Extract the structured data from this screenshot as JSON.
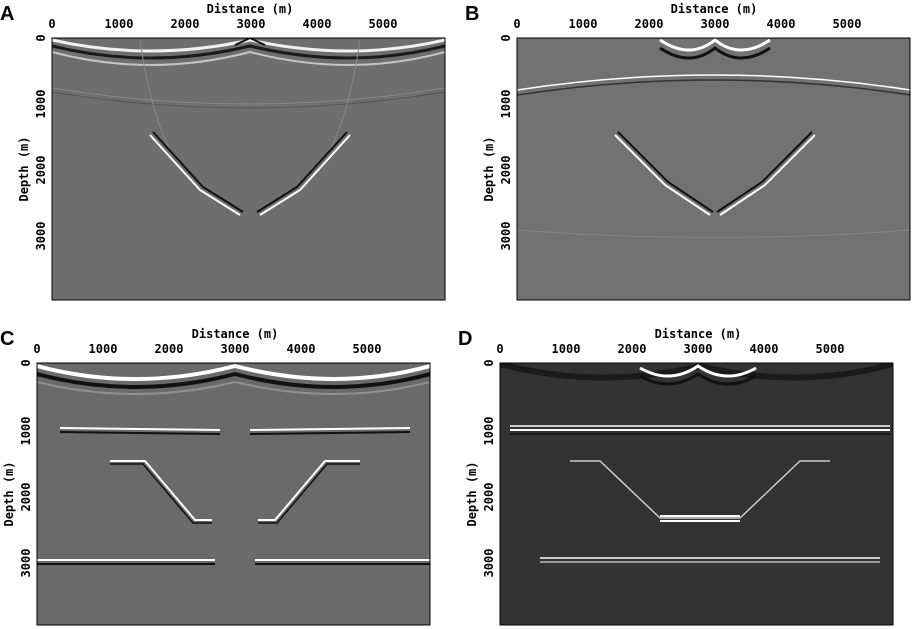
{
  "panels": [
    {
      "letter": "A",
      "xlabel": "Distance (m)",
      "ylabel": "Depth (m)",
      "x_ticks": [
        "0",
        "1000",
        "2000",
        "3000",
        "4000",
        "5000"
      ],
      "y_ticks": [
        "0",
        "1000",
        "2000",
        "3000"
      ],
      "background": "#6e6e6e"
    },
    {
      "letter": "B",
      "xlabel": "Distance (m)",
      "ylabel": "Depth (m)",
      "x_ticks": [
        "0",
        "1000",
        "2000",
        "3000",
        "4000",
        "5000"
      ],
      "y_ticks": [
        "0",
        "1000",
        "2000",
        "3000"
      ],
      "background": "#727272"
    },
    {
      "letter": "C",
      "xlabel": "Distance (m)",
      "ylabel": "Depth (m)",
      "x_ticks": [
        "0",
        "1000",
        "2000",
        "3000",
        "4000",
        "5000"
      ],
      "y_ticks": [
        "0",
        "1000",
        "2000",
        "3000"
      ],
      "background": "#6a6a6a"
    },
    {
      "letter": "D",
      "xlabel": "Distance (m)",
      "ylabel": "Depth (m)",
      "x_ticks": [
        "0",
        "1000",
        "2000",
        "3000",
        "4000",
        "5000"
      ],
      "y_ticks": [
        "0",
        "1000",
        "2000",
        "3000"
      ],
      "background": "#333333"
    }
  ]
}
